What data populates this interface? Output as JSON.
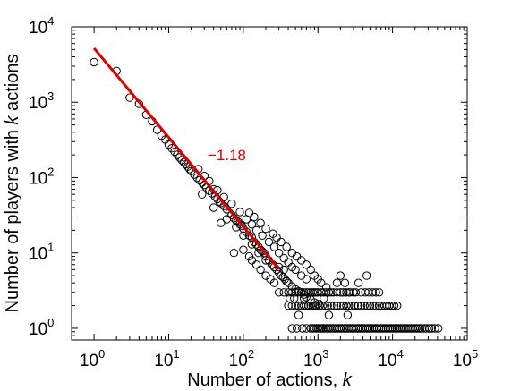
{
  "chart_data": {
    "type": "scatter",
    "title": "",
    "xlabel": "Number of actions, ",
    "xlabel_italic": "k",
    "ylabel": "Number of players with ",
    "ylabel_italic": "k",
    "ylabel_tail": " actions",
    "xscale": "log",
    "yscale": "log",
    "xlim": [
      0.5,
      100000
    ],
    "ylim": [
      0.7,
      10000
    ],
    "grid": false,
    "x_ticks": [
      {
        "base": "10",
        "exp": "0"
      },
      {
        "base": "10",
        "exp": "1"
      },
      {
        "base": "10",
        "exp": "2"
      },
      {
        "base": "10",
        "exp": "3"
      },
      {
        "base": "10",
        "exp": "4"
      },
      {
        "base": "10",
        "exp": "5"
      }
    ],
    "y_ticks": [
      {
        "base": "10",
        "exp": "0"
      },
      {
        "base": "10",
        "exp": "1"
      },
      {
        "base": "10",
        "exp": "2"
      },
      {
        "base": "10",
        "exp": "3"
      },
      {
        "base": "10",
        "exp": "4"
      }
    ],
    "marker_color": "#000000",
    "series": [
      {
        "points": [
          [
            1,
            3400
          ],
          [
            2,
            2600
          ],
          [
            3,
            1150
          ],
          [
            4,
            950
          ],
          [
            5,
            680
          ],
          [
            6,
            560
          ],
          [
            7,
            430
          ],
          [
            8,
            360
          ],
          [
            9,
            320
          ],
          [
            10,
            275
          ],
          [
            11,
            245
          ],
          [
            12,
            220
          ],
          [
            13,
            200
          ],
          [
            14,
            185
          ],
          [
            15,
            170
          ],
          [
            16,
            160
          ],
          [
            17,
            150
          ],
          [
            18,
            140
          ],
          [
            19,
            130
          ],
          [
            20,
            122
          ],
          [
            22,
            110
          ],
          [
            24,
            100
          ],
          [
            26,
            92
          ],
          [
            28,
            86
          ],
          [
            30,
            80
          ],
          [
            32,
            74
          ],
          [
            35,
            67
          ],
          [
            38,
            62
          ],
          [
            40,
            70
          ],
          [
            42,
            56
          ],
          [
            45,
            52
          ],
          [
            48,
            48
          ],
          [
            50,
            46
          ],
          [
            55,
            42
          ],
          [
            60,
            38
          ],
          [
            65,
            34
          ],
          [
            70,
            32
          ],
          [
            75,
            29
          ],
          [
            80,
            27
          ],
          [
            85,
            26
          ],
          [
            90,
            24
          ],
          [
            95,
            23
          ],
          [
            100,
            21
          ],
          [
            110,
            19
          ],
          [
            120,
            17
          ],
          [
            130,
            16
          ],
          [
            140,
            14
          ],
          [
            150,
            13
          ],
          [
            160,
            12
          ],
          [
            170,
            11
          ],
          [
            180,
            10.5
          ],
          [
            190,
            10
          ],
          [
            200,
            9
          ],
          [
            220,
            8
          ],
          [
            240,
            7
          ],
          [
            260,
            6.5
          ],
          [
            280,
            6
          ],
          [
            300,
            5.5
          ],
          [
            320,
            5
          ],
          [
            340,
            4.8
          ],
          [
            360,
            4.5
          ],
          [
            380,
            4.2
          ],
          [
            400,
            4
          ],
          [
            450,
            3.6
          ],
          [
            500,
            3.3
          ],
          [
            550,
            3.1
          ],
          [
            600,
            3
          ],
          [
            650,
            2.8
          ],
          [
            700,
            2.6
          ],
          [
            800,
            2.4
          ],
          [
            900,
            2.2
          ],
          [
            1000,
            2.1
          ],
          [
            25,
            130
          ],
          [
            30,
            105
          ],
          [
            35,
            90
          ],
          [
            45,
            68
          ],
          [
            55,
            55
          ],
          [
            70,
            45
          ],
          [
            90,
            35
          ],
          [
            110,
            28
          ],
          [
            130,
            24
          ],
          [
            150,
            20
          ],
          [
            180,
            17
          ],
          [
            220,
            14
          ],
          [
            260,
            12
          ],
          [
            300,
            10
          ],
          [
            350,
            8.5
          ],
          [
            400,
            7.5
          ],
          [
            450,
            6.5
          ],
          [
            500,
            6
          ],
          [
            600,
            5
          ],
          [
            700,
            4.5
          ],
          [
            60,
            28
          ],
          [
            80,
            22
          ],
          [
            100,
            17
          ],
          [
            130,
            13
          ],
          [
            160,
            10
          ],
          [
            200,
            8
          ],
          [
            250,
            7
          ],
          [
            300,
            6.5
          ],
          [
            350,
            6
          ],
          [
            120,
            34
          ],
          [
            140,
            30
          ],
          [
            170,
            25
          ],
          [
            200,
            21
          ],
          [
            250,
            18
          ],
          [
            280,
            16
          ],
          [
            320,
            14
          ],
          [
            380,
            12
          ],
          [
            450,
            10
          ],
          [
            520,
            9
          ],
          [
            600,
            8
          ],
          [
            700,
            7
          ],
          [
            800,
            6
          ],
          [
            900,
            5
          ],
          [
            1000,
            4.5
          ],
          [
            1100,
            4
          ],
          [
            1300,
            3.5
          ],
          [
            1500,
            3
          ],
          [
            2000,
            5
          ],
          [
            2300,
            4
          ],
          [
            2600,
            3
          ],
          [
            3000,
            3
          ],
          [
            3500,
            2
          ],
          [
            130,
            8
          ],
          [
            150,
            7
          ],
          [
            170,
            6
          ],
          [
            200,
            5
          ],
          [
            230,
            4.5
          ],
          [
            260,
            4
          ],
          [
            75,
            10
          ],
          [
            100,
            11
          ],
          [
            120,
            9
          ],
          [
            50,
            25
          ],
          [
            40,
            40
          ],
          [
            28,
            60
          ],
          [
            300,
            3
          ],
          [
            350,
            3
          ],
          [
            400,
            3
          ],
          [
            450,
            3
          ],
          [
            500,
            3
          ],
          [
            550,
            3
          ],
          [
            600,
            3
          ],
          [
            650,
            3
          ],
          [
            700,
            3
          ],
          [
            750,
            3
          ],
          [
            800,
            3
          ],
          [
            850,
            3
          ],
          [
            900,
            3
          ],
          [
            950,
            3
          ],
          [
            1000,
            3
          ],
          [
            1100,
            3
          ],
          [
            1200,
            3
          ],
          [
            1300,
            3
          ],
          [
            1400,
            3
          ],
          [
            1600,
            3
          ],
          [
            1800,
            3
          ],
          [
            2000,
            3
          ],
          [
            2200,
            3
          ],
          [
            2400,
            3
          ],
          [
            2700,
            3
          ],
          [
            3200,
            3
          ],
          [
            3800,
            3
          ],
          [
            4300,
            3
          ],
          [
            4800,
            3
          ],
          [
            5400,
            3
          ],
          [
            6000,
            3
          ],
          [
            6600,
            3
          ],
          [
            400,
            2
          ],
          [
            450,
            2
          ],
          [
            500,
            2
          ],
          [
            550,
            2
          ],
          [
            600,
            2
          ],
          [
            650,
            2
          ],
          [
            700,
            2
          ],
          [
            750,
            2
          ],
          [
            800,
            2
          ],
          [
            850,
            2
          ],
          [
            900,
            2
          ],
          [
            950,
            2
          ],
          [
            1050,
            2
          ],
          [
            1150,
            2
          ],
          [
            1250,
            2
          ],
          [
            1350,
            2
          ],
          [
            1500,
            2
          ],
          [
            1650,
            2
          ],
          [
            1800,
            2
          ],
          [
            2000,
            2
          ],
          [
            2200,
            2
          ],
          [
            2400,
            2
          ],
          [
            2600,
            2
          ],
          [
            2800,
            2
          ],
          [
            3100,
            2
          ],
          [
            3400,
            2
          ],
          [
            3800,
            2
          ],
          [
            4200,
            2
          ],
          [
            4600,
            2
          ],
          [
            5000,
            2
          ],
          [
            5500,
            2
          ],
          [
            6000,
            2
          ],
          [
            6600,
            2
          ],
          [
            7200,
            2
          ],
          [
            7800,
            2
          ],
          [
            8400,
            2
          ],
          [
            9000,
            2
          ],
          [
            9800,
            2
          ],
          [
            10500,
            2
          ],
          [
            11500,
            2
          ],
          [
            800,
            1
          ],
          [
            850,
            1
          ],
          [
            900,
            1
          ],
          [
            950,
            1
          ],
          [
            1000,
            1
          ],
          [
            1050,
            1
          ],
          [
            1100,
            1
          ],
          [
            1150,
            1
          ],
          [
            1200,
            1
          ],
          [
            1280,
            1
          ],
          [
            1350,
            1
          ],
          [
            1420,
            1
          ],
          [
            1500,
            1
          ],
          [
            1600,
            1
          ],
          [
            1700,
            1
          ],
          [
            1800,
            1
          ],
          [
            1900,
            1
          ],
          [
            2000,
            1
          ],
          [
            2100,
            1
          ],
          [
            2250,
            1
          ],
          [
            2400,
            1
          ],
          [
            2550,
            1
          ],
          [
            2700,
            1
          ],
          [
            2850,
            1
          ],
          [
            3000,
            1
          ],
          [
            3200,
            1
          ],
          [
            3400,
            1
          ],
          [
            3600,
            1
          ],
          [
            3800,
            1
          ],
          [
            4000,
            1
          ],
          [
            4250,
            1
          ],
          [
            4500,
            1
          ],
          [
            4750,
            1
          ],
          [
            5000,
            1
          ],
          [
            5300,
            1
          ],
          [
            5600,
            1
          ],
          [
            5900,
            1
          ],
          [
            6200,
            1
          ],
          [
            6600,
            1
          ],
          [
            7000,
            1
          ],
          [
            7400,
            1
          ],
          [
            7800,
            1
          ],
          [
            8200,
            1
          ],
          [
            8700,
            1
          ],
          [
            9200,
            1
          ],
          [
            9700,
            1
          ],
          [
            10200,
            1
          ],
          [
            10800,
            1
          ],
          [
            11400,
            1
          ],
          [
            12000,
            1
          ],
          [
            12700,
            1
          ],
          [
            13400,
            1
          ],
          [
            14100,
            1
          ],
          [
            14900,
            1
          ],
          [
            15800,
            1
          ],
          [
            16700,
            1
          ],
          [
            17600,
            1
          ],
          [
            18600,
            1
          ],
          [
            19700,
            1
          ],
          [
            20800,
            1
          ],
          [
            22000,
            1
          ],
          [
            23500,
            1
          ],
          [
            25000,
            1
          ],
          [
            26800,
            1
          ],
          [
            28500,
            1
          ],
          [
            31000,
            1
          ],
          [
            33500,
            1
          ],
          [
            37000,
            1
          ],
          [
            41000,
            1
          ],
          [
            550,
            1.5
          ],
          [
            420,
            2.5
          ],
          [
            480,
            2.5
          ],
          [
            650,
            2.5
          ],
          [
            1200,
            2.5
          ],
          [
            1400,
            1.5
          ],
          [
            2500,
            1.5
          ],
          [
            450,
            1
          ],
          [
            520,
            1
          ],
          [
            620,
            1
          ],
          [
            700,
            1
          ],
          [
            3500,
            4
          ],
          [
            4500,
            5
          ],
          [
            1800,
            4
          ]
        ]
      }
    ],
    "fit_line": {
      "x": [
        1,
        300
      ],
      "y": [
        5200,
        6.1
      ],
      "color": "#e00000",
      "label": "−1.18"
    }
  }
}
